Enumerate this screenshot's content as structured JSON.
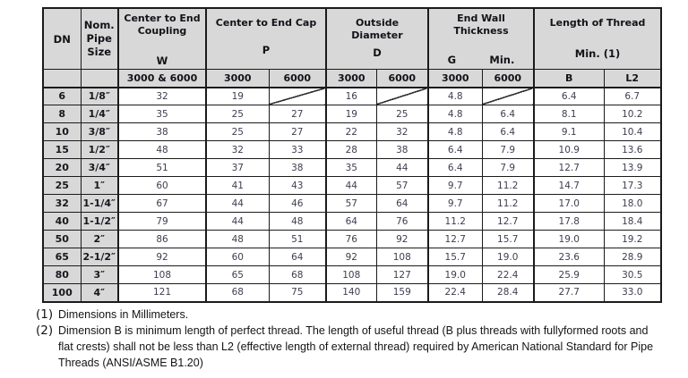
{
  "table": {
    "corner": {
      "dn": "DN",
      "pipe_lines": [
        "Nom.",
        "Pipe",
        "Size"
      ]
    },
    "groups": [
      {
        "title": "Center to End Coupling",
        "symbol": "W",
        "subs": [
          "3000 & 6000"
        ]
      },
      {
        "title": "Center to End Cap",
        "symbol": "P",
        "subs": [
          "3000",
          "6000"
        ]
      },
      {
        "title": "Outside Diameter",
        "symbol": "D",
        "subs": [
          "3000",
          "6000"
        ]
      },
      {
        "title": "End Wall Thickness",
        "symbol": "G",
        "symbol2": "Min.",
        "subs": [
          "3000",
          "6000"
        ]
      },
      {
        "title": "Length of Thread",
        "symbol": "Min. (1)",
        "subs": [
          "B",
          "L2"
        ]
      }
    ],
    "rows": [
      [
        "6",
        "1/8″",
        "32",
        "19",
        null,
        "16",
        null,
        "4.8",
        null,
        "6.4",
        "6.7"
      ],
      [
        "8",
        "1/4″",
        "35",
        "25",
        "27",
        "19",
        "25",
        "4.8",
        "6.4",
        "8.1",
        "10.2"
      ],
      [
        "10",
        "3/8″",
        "38",
        "25",
        "27",
        "22",
        "32",
        "4.8",
        "6.4",
        "9.1",
        "10.4"
      ],
      [
        "15",
        "1/2″",
        "48",
        "32",
        "33",
        "28",
        "38",
        "6.4",
        "7.9",
        "10.9",
        "13.6"
      ],
      [
        "20",
        "3/4″",
        "51",
        "37",
        "38",
        "35",
        "44",
        "6.4",
        "7.9",
        "12.7",
        "13.9"
      ],
      [
        "25",
        "1″",
        "60",
        "41",
        "43",
        "44",
        "57",
        "9.7",
        "11.2",
        "14.7",
        "17.3"
      ],
      [
        "32",
        "1-1/4″",
        "67",
        "44",
        "46",
        "57",
        "64",
        "9.7",
        "11.2",
        "17.0",
        "18.0"
      ],
      [
        "40",
        "1-1/2″",
        "79",
        "44",
        "48",
        "64",
        "76",
        "11.2",
        "12.7",
        "17.8",
        "18.4"
      ],
      [
        "50",
        "2″",
        "86",
        "48",
        "51",
        "76",
        "92",
        "12.7",
        "15.7",
        "19.0",
        "19.2"
      ],
      [
        "65",
        "2-1/2″",
        "92",
        "60",
        "64",
        "92",
        "108",
        "15.7",
        "19.0",
        "23.6",
        "28.9"
      ],
      [
        "80",
        "3″",
        "108",
        "65",
        "68",
        "108",
        "127",
        "19.0",
        "22.4",
        "25.9",
        "30.5"
      ],
      [
        "100",
        "4″",
        "121",
        "68",
        "75",
        "140",
        "159",
        "22.4",
        "28.4",
        "27.7",
        "33.0"
      ]
    ]
  },
  "footnotes": [
    {
      "marker": "(1)",
      "text": "Dimensions in Millimeters."
    },
    {
      "marker": "(2)",
      "text": "Dimension B is minimum length of perfect thread. The length of useful thread (B plus threads with fullyformed roots and flat crests) shall not be less than L2 (effective length of external thread) required by American National Standard for Pipe Threads (ANSI/ASME B1.20)"
    }
  ],
  "colors": {
    "header_bg": "#d8d8d8",
    "border": "#1b1b1b",
    "value_text": "#3e3e50",
    "label_text": "#17171f"
  }
}
